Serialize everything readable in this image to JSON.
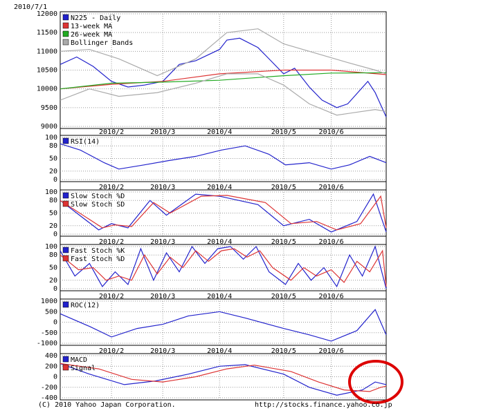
{
  "header": {
    "date": "2010/7/1"
  },
  "footer": {
    "copyright": "(C) 2010 Yahoo Japan Corporation.",
    "url": "http://stocks.finance.yahoo.co.jp"
  },
  "annotation": {
    "shape": "circle",
    "color": "#dd0000",
    "target": "MACD crossover near end of June"
  },
  "x_axis": {
    "date_range": [
      "2010-01-04",
      "2010-07-01"
    ],
    "ticks": [
      {
        "label": "2010/2",
        "date": "2010-02-01"
      },
      {
        "label": "2010/3",
        "date": "2010-03-01"
      },
      {
        "label": "2010/4",
        "date": "2010-04-01"
      },
      {
        "label": "2010/5",
        "date": "2010-05-06"
      },
      {
        "label": "2010/6",
        "date": "2010-06-01"
      }
    ]
  },
  "chart_data": [
    {
      "type": "line",
      "panel": "price",
      "ylim": [
        9000,
        12000
      ],
      "yticks": [
        9000,
        9500,
        10000,
        10500,
        11000,
        11500,
        12000
      ],
      "legend": [
        {
          "label": "N225 - Daily",
          "color": "#2222cc"
        },
        {
          "label": "13-week MA",
          "color": "#dd3333"
        },
        {
          "label": "26-week MA",
          "color": "#22aa22"
        },
        {
          "label": "Bollinger Bands",
          "color": "#aaaaaa"
        }
      ],
      "series": [
        {
          "name": "N225 - Daily",
          "color": "#2222cc",
          "x": [
            "2010-01-04",
            "2010-01-13",
            "2010-01-22",
            "2010-02-01",
            "2010-02-10",
            "2010-02-19",
            "2010-03-01",
            "2010-03-10",
            "2010-03-19",
            "2010-04-01",
            "2010-04-05",
            "2010-04-12",
            "2010-04-22",
            "2010-05-06",
            "2010-05-12",
            "2010-05-20",
            "2010-05-27",
            "2010-06-04",
            "2010-06-10",
            "2010-06-21",
            "2010-06-25",
            "2010-07-01"
          ],
          "y": [
            10650,
            10850,
            10600,
            10200,
            10050,
            10100,
            10200,
            10650,
            10750,
            11050,
            11300,
            11350,
            11100,
            10400,
            10550,
            10050,
            9700,
            9500,
            9600,
            10200,
            9900,
            9250
          ]
        },
        {
          "name": "13-week MA",
          "color": "#dd3333",
          "x": [
            "2010-01-04",
            "2010-02-01",
            "2010-03-01",
            "2010-04-01",
            "2010-05-06",
            "2010-06-01",
            "2010-07-01"
          ],
          "y": [
            10000,
            10120,
            10200,
            10400,
            10500,
            10500,
            10380
          ]
        },
        {
          "name": "26-week MA",
          "color": "#22aa22",
          "x": [
            "2010-01-04",
            "2010-02-01",
            "2010-03-01",
            "2010-04-01",
            "2010-05-06",
            "2010-06-01",
            "2010-07-01"
          ],
          "y": [
            10000,
            10150,
            10180,
            10230,
            10350,
            10420,
            10430
          ]
        },
        {
          "name": "Bollinger Upper",
          "color": "#aaaaaa",
          "x": [
            "2010-01-04",
            "2010-01-20",
            "2010-02-05",
            "2010-02-26",
            "2010-03-19",
            "2010-04-05",
            "2010-04-22",
            "2010-05-06",
            "2010-05-20",
            "2010-06-10",
            "2010-06-25",
            "2010-07-01"
          ],
          "y": [
            11000,
            11050,
            10800,
            10350,
            10800,
            11500,
            11600,
            11200,
            11000,
            10700,
            10500,
            10400
          ]
        },
        {
          "name": "Bollinger Lower",
          "color": "#aaaaaa",
          "x": [
            "2010-01-04",
            "2010-01-20",
            "2010-02-05",
            "2010-02-26",
            "2010-03-19",
            "2010-04-05",
            "2010-04-22",
            "2010-05-06",
            "2010-05-20",
            "2010-06-04",
            "2010-06-25",
            "2010-07-01"
          ],
          "y": [
            9700,
            10000,
            9800,
            9900,
            10150,
            10400,
            10400,
            10100,
            9600,
            9300,
            9450,
            9400
          ]
        }
      ]
    },
    {
      "type": "line",
      "panel": "rsi",
      "ylim": [
        0,
        100
      ],
      "yticks": [
        0,
        20,
        50,
        80,
        100
      ],
      "legend": [
        {
          "label": "RSI(14)",
          "color": "#2222cc"
        }
      ],
      "series": [
        {
          "name": "RSI(14)",
          "color": "#2222cc",
          "x": [
            "2010-01-04",
            "2010-01-15",
            "2010-01-28",
            "2010-02-05",
            "2010-02-19",
            "2010-03-04",
            "2010-03-19",
            "2010-04-02",
            "2010-04-15",
            "2010-04-28",
            "2010-05-07",
            "2010-05-20",
            "2010-06-01",
            "2010-06-11",
            "2010-06-22",
            "2010-07-01"
          ],
          "y": [
            85,
            70,
            40,
            25,
            35,
            45,
            55,
            70,
            80,
            60,
            35,
            40,
            25,
            35,
            55,
            40
          ]
        }
      ]
    },
    {
      "type": "line",
      "panel": "slow_stoch",
      "ylim": [
        0,
        100
      ],
      "yticks": [
        0,
        20,
        50,
        80,
        100
      ],
      "legend": [
        {
          "label": "Slow Stoch %D",
          "color": "#2222cc"
        },
        {
          "label": "Slow Stoch SD",
          "color": "#dd3333"
        }
      ],
      "series": [
        {
          "name": "Slow Stoch %D",
          "color": "#2222cc",
          "x": [
            "2010-01-04",
            "2010-01-25",
            "2010-02-01",
            "2010-02-10",
            "2010-02-22",
            "2010-03-03",
            "2010-03-19",
            "2010-04-01",
            "2010-04-22",
            "2010-05-06",
            "2010-05-20",
            "2010-06-01",
            "2010-06-15",
            "2010-06-24",
            "2010-07-01"
          ],
          "y": [
            80,
            10,
            25,
            15,
            80,
            45,
            95,
            90,
            70,
            20,
            35,
            5,
            30,
            95,
            5
          ]
        },
        {
          "name": "Slow Stoch SD",
          "color": "#dd3333",
          "x": [
            "2010-01-04",
            "2010-01-27",
            "2010-02-03",
            "2010-02-12",
            "2010-02-24",
            "2010-03-05",
            "2010-03-22",
            "2010-04-05",
            "2010-04-26",
            "2010-05-10",
            "2010-05-24",
            "2010-06-04",
            "2010-06-17",
            "2010-06-28",
            "2010-07-01"
          ],
          "y": [
            80,
            15,
            22,
            18,
            75,
            50,
            90,
            92,
            75,
            25,
            30,
            10,
            25,
            90,
            15
          ]
        }
      ]
    },
    {
      "type": "line",
      "panel": "fast_stoch",
      "ylim": [
        0,
        100
      ],
      "yticks": [
        0,
        20,
        50,
        80,
        100
      ],
      "legend": [
        {
          "label": "Fast Stoch %K",
          "color": "#2222cc"
        },
        {
          "label": "Fast Stoch %D",
          "color": "#dd3333"
        }
      ],
      "series": [
        {
          "name": "Fast Stoch %K",
          "color": "#2222cc",
          "x": [
            "2010-01-04",
            "2010-01-12",
            "2010-01-20",
            "2010-01-27",
            "2010-02-03",
            "2010-02-10",
            "2010-02-17",
            "2010-02-24",
            "2010-03-03",
            "2010-03-10",
            "2010-03-17",
            "2010-03-24",
            "2010-03-31",
            "2010-04-07",
            "2010-04-14",
            "2010-04-21",
            "2010-04-28",
            "2010-05-07",
            "2010-05-14",
            "2010-05-21",
            "2010-05-28",
            "2010-06-04",
            "2010-06-11",
            "2010-06-18",
            "2010-06-25",
            "2010-07-01"
          ],
          "y": [
            90,
            30,
            60,
            5,
            40,
            10,
            95,
            20,
            85,
            40,
            100,
            60,
            95,
            100,
            70,
            100,
            40,
            10,
            60,
            20,
            50,
            5,
            80,
            30,
            100,
            0
          ]
        },
        {
          "name": "Fast Stoch %D",
          "color": "#dd3333",
          "x": [
            "2010-01-04",
            "2010-01-14",
            "2010-01-22",
            "2010-01-29",
            "2010-02-05",
            "2010-02-12",
            "2010-02-19",
            "2010-02-26",
            "2010-03-05",
            "2010-03-12",
            "2010-03-19",
            "2010-03-26",
            "2010-04-02",
            "2010-04-09",
            "2010-04-16",
            "2010-04-23",
            "2010-04-30",
            "2010-05-10",
            "2010-05-17",
            "2010-05-24",
            "2010-06-01",
            "2010-06-08",
            "2010-06-15",
            "2010-06-22",
            "2010-06-29",
            "2010-07-01"
          ],
          "y": [
            80,
            45,
            50,
            20,
            30,
            20,
            80,
            35,
            75,
            50,
            90,
            65,
            90,
            95,
            75,
            90,
            50,
            20,
            50,
            30,
            45,
            15,
            65,
            40,
            90,
            5
          ]
        }
      ]
    },
    {
      "type": "line",
      "panel": "roc",
      "ylim": [
        -1000,
        1000
      ],
      "yticks": [
        -1000,
        -500,
        0,
        500,
        1000
      ],
      "legend": [
        {
          "label": "ROC(12)",
          "color": "#2222cc"
        }
      ],
      "series": [
        {
          "name": "ROC(12)",
          "color": "#2222cc",
          "x": [
            "2010-01-04",
            "2010-01-20",
            "2010-02-01",
            "2010-02-15",
            "2010-03-01",
            "2010-03-15",
            "2010-04-01",
            "2010-04-15",
            "2010-05-06",
            "2010-05-20",
            "2010-06-01",
            "2010-06-15",
            "2010-06-25",
            "2010-07-01"
          ],
          "y": [
            400,
            -200,
            -700,
            -300,
            -100,
            300,
            500,
            200,
            -300,
            -600,
            -900,
            -400,
            600,
            -600
          ]
        }
      ]
    },
    {
      "type": "line",
      "panel": "macd",
      "ylim": [
        -400,
        400
      ],
      "yticks": [
        -400,
        -200,
        0,
        200,
        400
      ],
      "legend": [
        {
          "label": "MACD",
          "color": "#2222cc"
        },
        {
          "label": "Signal",
          "color": "#dd3333"
        }
      ],
      "series": [
        {
          "name": "MACD",
          "color": "#2222cc",
          "x": [
            "2010-01-04",
            "2010-01-20",
            "2010-02-08",
            "2010-02-25",
            "2010-03-15",
            "2010-04-01",
            "2010-04-15",
            "2010-05-06",
            "2010-05-20",
            "2010-06-04",
            "2010-06-18",
            "2010-06-25",
            "2010-07-01"
          ],
          "y": [
            250,
            50,
            -150,
            -80,
            50,
            200,
            230,
            50,
            -200,
            -350,
            -250,
            -100,
            -150
          ]
        },
        {
          "name": "Signal",
          "color": "#dd3333",
          "x": [
            "2010-01-04",
            "2010-01-25",
            "2010-02-12",
            "2010-03-01",
            "2010-03-19",
            "2010-04-05",
            "2010-04-20",
            "2010-05-10",
            "2010-05-25",
            "2010-06-08",
            "2010-06-22",
            "2010-06-28",
            "2010-07-01"
          ],
          "y": [
            250,
            150,
            -50,
            -100,
            0,
            150,
            220,
            100,
            -100,
            -250,
            -280,
            -200,
            -180
          ]
        }
      ]
    }
  ]
}
